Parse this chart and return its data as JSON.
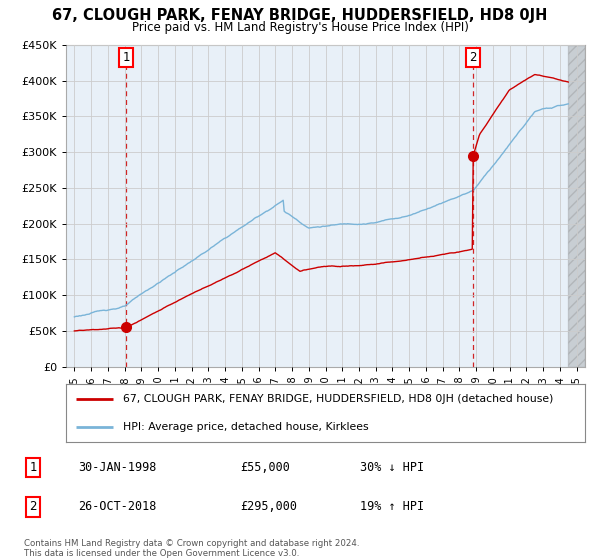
{
  "title": "67, CLOUGH PARK, FENAY BRIDGE, HUDDERSFIELD, HD8 0JH",
  "subtitle": "Price paid vs. HM Land Registry's House Price Index (HPI)",
  "ylim": [
    0,
    450000
  ],
  "yticks": [
    0,
    50000,
    100000,
    150000,
    200000,
    250000,
    300000,
    350000,
    400000,
    450000
  ],
  "sale1_date": 1998.08,
  "sale1_price": 55000,
  "sale1_label": "1",
  "sale2_date": 2018.82,
  "sale2_price": 295000,
  "sale2_label": "2",
  "hpi_color": "#7ab4d8",
  "price_color": "#cc0000",
  "dashed_color": "#cc0000",
  "plot_bg_color": "#e8f0f8",
  "legend_label1": "67, CLOUGH PARK, FENAY BRIDGE, HUDDERSFIELD, HD8 0JH (detached house)",
  "legend_label2": "HPI: Average price, detached house, Kirklees",
  "table_row1": [
    "1",
    "30-JAN-1998",
    "£55,000",
    "30% ↓ HPI"
  ],
  "table_row2": [
    "2",
    "26-OCT-2018",
    "£295,000",
    "19% ↑ HPI"
  ],
  "footnote": "Contains HM Land Registry data © Crown copyright and database right 2024.\nThis data is licensed under the Open Government Licence v3.0.",
  "background_color": "#ffffff",
  "grid_color": "#cccccc"
}
